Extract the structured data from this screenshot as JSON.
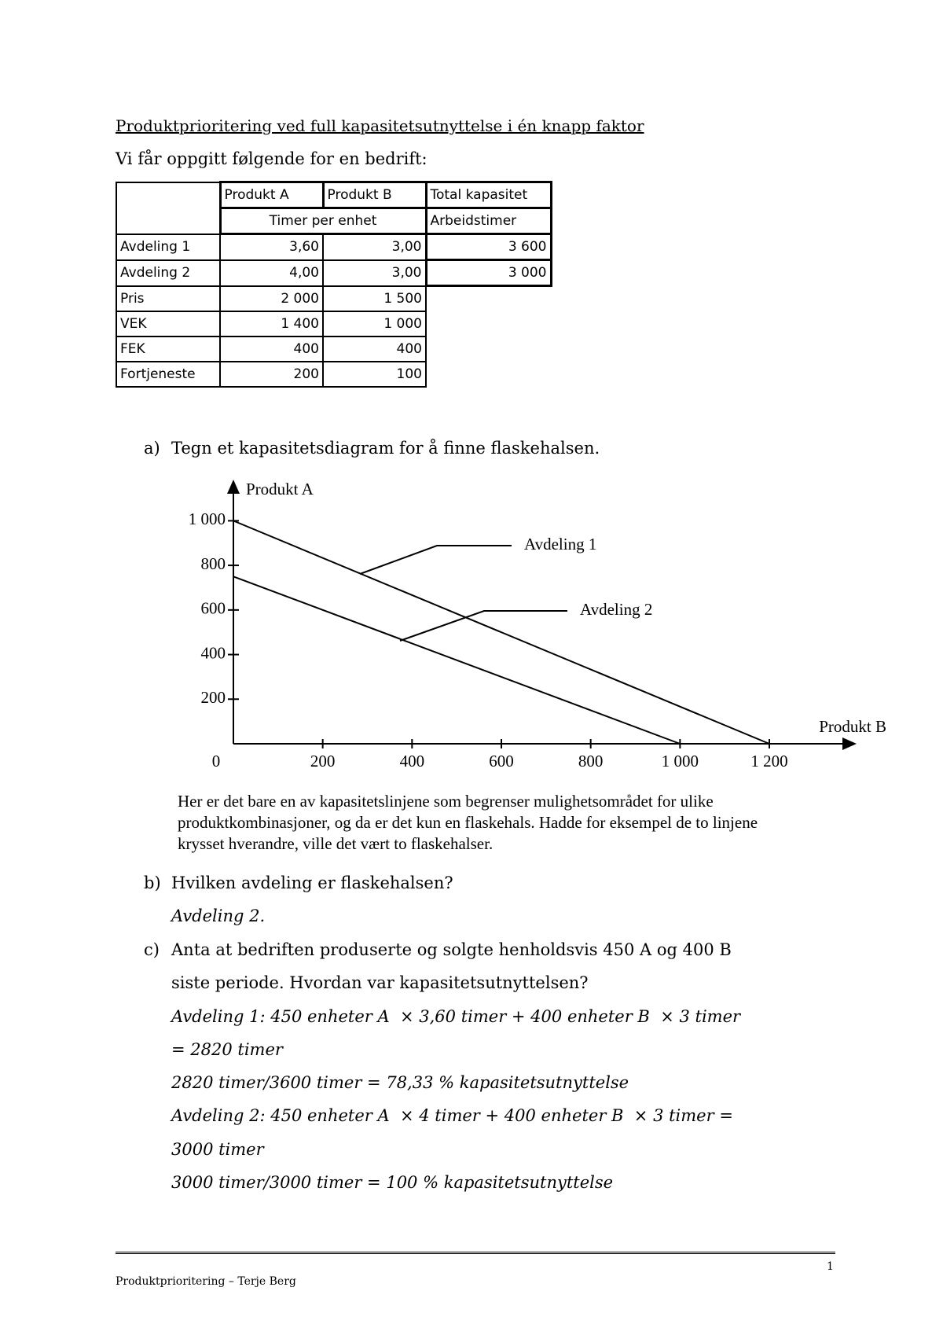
{
  "title": "Produktprioritering ved full kapasitetsutnyttelse i én knapp faktor",
  "intro": "Vi får oppgitt følgende for en bedrift:",
  "table": {
    "header": [
      "Produkt A",
      "Produkt B",
      "Total kapasitet"
    ],
    "subheader": [
      "Timer per enhet",
      "Arbeidstimer"
    ],
    "rows": [
      [
        "Avdeling 1",
        "3,60",
        "3,00",
        "3 600"
      ],
      [
        "Avdeling 2",
        "4,00",
        "3,00",
        "3 000"
      ],
      [
        "Pris",
        "2 000",
        "1 500"
      ],
      [
        "VEK",
        "1 400",
        "1 000"
      ],
      [
        "FEK",
        "400",
        "400"
      ],
      [
        "Fortjeneste",
        "200",
        "100"
      ]
    ]
  },
  "questions": [
    {
      "label": "a)",
      "text": "Tegn et kapasitetsdiagram for å finne flaskehalsen."
    },
    {
      "label": "b)",
      "text": "Hvilken avdeling er flaskehalsen?"
    },
    {
      "label": "c)",
      "text": [
        "Anta at bedriften produserte og solgte henholdsvis 450 A og 400 B",
        "siste periode. Hvordan var kapasitetsutnyttelsen?"
      ]
    }
  ],
  "figure": {
    "type": "line",
    "y_label": "Produkt A",
    "x_label": "Produkt B",
    "xlim": [
      0,
      1390
    ],
    "ylim": [
      0,
      1160
    ],
    "xticks": [
      0,
      200,
      400,
      600,
      800,
      {
        "value": 1000,
        "label": "1 000"
      },
      {
        "value": 1200,
        "label": "1 200"
      }
    ],
    "yticks": [
      200,
      400,
      600,
      800,
      {
        "value": 1000,
        "label": "1 000"
      }
    ],
    "series": [
      {
        "name": "Avdeling 1",
        "color": "#000000",
        "x": [
          0,
          1200
        ],
        "values": [
          1000,
          0
        ]
      },
      {
        "name": "Avdeling 2",
        "color": "#000000",
        "x": [
          0,
          1000
        ],
        "values": [
          750,
          0
        ]
      }
    ],
    "caption": [
      "Her er det bare en av kapasitetslinjene som begrenser mulighetsområdet for ulike",
      "produktkombinasjoner, og da er det kun en flaskehals. Hadde for eksempel de to linjene",
      "krysset hverandre, ville det vært to flaskehalser."
    ]
  },
  "answers": {
    "b": "Avdeling 2.",
    "c": [
      "Avdeling 1: 450 enheter A  × 3,60 timer + 400 enheter B  × 3 timer",
      "= 2820 timer",
      "2820 timer/3600 timer = 78,33 % kapasitetsutnyttelse",
      "Avdeling 2: 450 enheter A  × 4 timer + 400 enheter B  × 3 timer =",
      "3000 timer",
      "3000 timer/3000 timer = 100 % kapasitetsutnyttelse"
    ]
  },
  "footer": {
    "page": "1",
    "text": "Produktprioritering – Terje Berg"
  }
}
